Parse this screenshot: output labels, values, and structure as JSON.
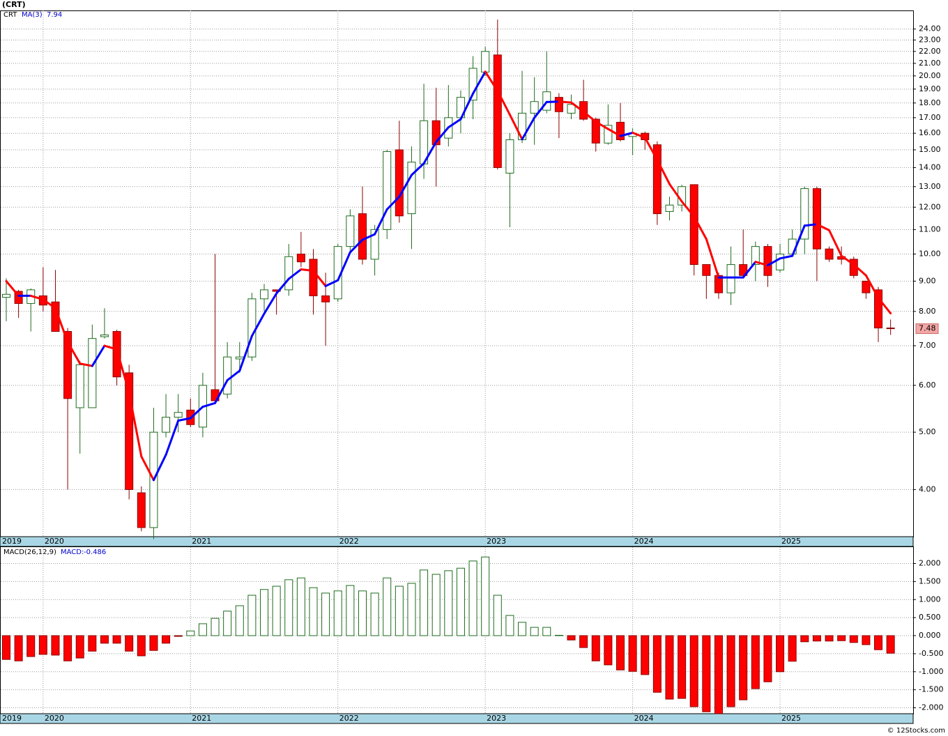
{
  "chart_data": [
    {
      "type": "candlestick",
      "title": "(CRT)",
      "categories": [
        "2019",
        null,
        null,
        "2020",
        null,
        null,
        null,
        null,
        null,
        null,
        null,
        null,
        null,
        null,
        null,
        "2021",
        null,
        null,
        null,
        null,
        null,
        null,
        null,
        null,
        null,
        null,
        null,
        "2022",
        null,
        null,
        null,
        null,
        null,
        null,
        null,
        null,
        null,
        null,
        null,
        "2023",
        null,
        null,
        null,
        null,
        null,
        null,
        null,
        null,
        null,
        null,
        null,
        "2024",
        null,
        null,
        null,
        null,
        null,
        null,
        null,
        null,
        null,
        null,
        null,
        "2025",
        null,
        null,
        null,
        null,
        null,
        null,
        null,
        null,
        null
      ],
      "series": [
        {
          "name": "CRT",
          "up_color": "#1e6b1e",
          "down_color": "#ff0000",
          "open": [
            8.45,
            8.65,
            8.25,
            8.5,
            8.3,
            7.4,
            5.5,
            5.5,
            7.25,
            7.4,
            6.3,
            3.95,
            3.45,
            5.0,
            5.3,
            5.45,
            5.1,
            5.9,
            5.8,
            6.65,
            6.7,
            8.4,
            8.7,
            8.7,
            10.0,
            9.8,
            8.5,
            8.4,
            10.3,
            11.7,
            9.8,
            11.0,
            15.0,
            11.7,
            14.2,
            16.8,
            15.7,
            17.0,
            18.2,
            20.3,
            21.7,
            13.7,
            15.6,
            17.3,
            17.5,
            18.4,
            17.3,
            18.1,
            16.9,
            15.4,
            16.7,
            15.8,
            16.0,
            15.3,
            11.8,
            12.1,
            13.1,
            9.6,
            9.2,
            8.6,
            9.6,
            9.6,
            10.3,
            9.4,
            10.0,
            10.6,
            12.9,
            10.2,
            9.9,
            9.8,
            9.0,
            8.7,
            7.5
          ],
          "high": [
            9.1,
            8.7,
            8.75,
            9.5,
            9.4,
            7.5,
            6.6,
            7.6,
            8.1,
            7.45,
            6.5,
            4.05,
            5.5,
            5.8,
            5.8,
            5.7,
            6.3,
            10.0,
            7.1,
            7.1,
            8.6,
            8.9,
            8.7,
            10.4,
            10.9,
            10.2,
            9.3,
            10.4,
            11.9,
            13.0,
            11.2,
            15.0,
            16.8,
            15.2,
            19.4,
            19.1,
            19.3,
            18.9,
            21.6,
            22.4,
            24.9,
            16.0,
            20.4,
            19.9,
            22.0,
            18.7,
            18.6,
            19.7,
            17.0,
            17.9,
            18.0,
            16.3,
            16.1,
            15.5,
            12.5,
            13.1,
            13.1,
            9.6,
            9.3,
            10.3,
            11.0,
            10.5,
            10.4,
            10.4,
            11.0,
            13.0,
            13.0,
            10.3,
            10.3,
            9.9,
            9.0,
            8.8,
            7.75
          ],
          "low": [
            7.7,
            7.8,
            7.4,
            8.0,
            7.4,
            4.0,
            4.6,
            5.5,
            7.2,
            6.0,
            3.85,
            3.4,
            3.3,
            4.9,
            5.0,
            5.1,
            4.9,
            5.6,
            5.7,
            6.3,
            6.6,
            8.0,
            7.9,
            8.5,
            9.5,
            7.9,
            7.0,
            8.3,
            10.0,
            9.6,
            9.2,
            10.6,
            11.3,
            10.2,
            13.4,
            13.0,
            15.2,
            16.0,
            16.9,
            20.0,
            13.9,
            11.1,
            15.4,
            15.3,
            17.3,
            15.7,
            16.9,
            16.8,
            14.9,
            15.3,
            15.5,
            14.7,
            15.0,
            11.2,
            11.4,
            11.8,
            9.2,
            8.4,
            8.4,
            8.2,
            9.1,
            9.0,
            8.8,
            9.3,
            9.9,
            10.0,
            9.0,
            9.7,
            9.6,
            9.1,
            8.4,
            7.1,
            7.3
          ],
          "close": [
            8.55,
            8.25,
            8.7,
            8.2,
            7.4,
            5.7,
            6.5,
            7.2,
            7.3,
            6.2,
            4.0,
            3.45,
            5.0,
            5.3,
            5.4,
            5.15,
            6.0,
            5.65,
            6.7,
            6.7,
            8.4,
            8.7,
            8.65,
            9.9,
            9.7,
            8.5,
            8.3,
            10.3,
            11.6,
            9.8,
            11.0,
            14.9,
            11.6,
            14.3,
            16.8,
            15.3,
            17.0,
            18.4,
            20.6,
            22.0,
            14.0,
            15.6,
            17.3,
            18.1,
            18.8,
            17.4,
            17.9,
            16.9,
            15.4,
            16.5,
            15.6,
            16.0,
            15.6,
            11.7,
            12.1,
            13.0,
            9.6,
            9.2,
            8.6,
            9.6,
            9.2,
            10.3,
            9.2,
            10.0,
            10.6,
            12.9,
            10.2,
            9.8,
            9.8,
            9.2,
            8.6,
            7.5,
            7.48
          ]
        },
        {
          "name": "MA(3)",
          "type": "line",
          "up_color": "#0000ff",
          "down_color": "#ff0000",
          "values": [
            9.0,
            8.5,
            8.5,
            8.38,
            8.1,
            7.1,
            6.53,
            6.47,
            7.0,
            6.9,
            5.83,
            4.55,
            4.15,
            4.58,
            5.23,
            5.28,
            5.52,
            5.6,
            6.12,
            6.35,
            7.27,
            7.93,
            8.58,
            9.08,
            9.42,
            9.37,
            8.83,
            9.03,
            10.07,
            10.57,
            10.8,
            11.9,
            12.5,
            13.6,
            14.23,
            15.47,
            16.37,
            16.9,
            18.67,
            20.33,
            18.87,
            17.2,
            15.63,
            17.0,
            18.07,
            18.1,
            18.03,
            17.4,
            16.73,
            16.27,
            15.83,
            16.03,
            15.73,
            14.43,
            13.13,
            12.27,
            11.57,
            10.6,
            9.13,
            9.13,
            9.13,
            9.7,
            9.57,
            9.83,
            9.93,
            11.17,
            11.23,
            10.97,
            9.93,
            9.6,
            9.2,
            8.43,
            7.94
          ]
        }
      ],
      "log_scale": true,
      "ylim": [
        3.33,
        25.8
      ],
      "grid": true,
      "yticks": [
        {
          "value": 4,
          "label": "4.00"
        },
        {
          "value": 5,
          "label": "5.00"
        },
        {
          "value": 6,
          "label": "6.00"
        },
        {
          "value": 7,
          "label": "7.00"
        },
        {
          "value": 8,
          "label": "8.00"
        },
        {
          "value": 9,
          "label": "9.00"
        },
        {
          "value": 10,
          "label": "10.00"
        },
        {
          "value": 11,
          "label": "11.00"
        },
        {
          "value": 12,
          "label": "12.00"
        },
        {
          "value": 13,
          "label": "13.00"
        },
        {
          "value": 14,
          "label": "14.00"
        },
        {
          "value": 15,
          "label": "15.00"
        },
        {
          "value": 16,
          "label": "16.00"
        },
        {
          "value": 17,
          "label": "17.00"
        },
        {
          "value": 18,
          "label": "18.00"
        },
        {
          "value": 19,
          "label": "19.00"
        },
        {
          "value": 20,
          "label": "20.00"
        },
        {
          "value": 21,
          "label": "21.00"
        },
        {
          "value": 22,
          "label": "22.00"
        },
        {
          "value": 23,
          "label": "23.00"
        },
        {
          "value": 24,
          "label": "24.00"
        }
      ]
    },
    {
      "type": "bar",
      "title": "MACD(26,12,9)",
      "categories": [
        "2019",
        null,
        null,
        "2020",
        null,
        null,
        null,
        null,
        null,
        null,
        null,
        null,
        null,
        null,
        null,
        "2021",
        null,
        null,
        null,
        null,
        null,
        null,
        null,
        null,
        null,
        null,
        null,
        "2022",
        null,
        null,
        null,
        null,
        null,
        null,
        null,
        null,
        null,
        null,
        null,
        "2023",
        null,
        null,
        null,
        null,
        null,
        null,
        null,
        null,
        null,
        null,
        null,
        "2024",
        null,
        null,
        null,
        null,
        null,
        null,
        null,
        null,
        null,
        null,
        null,
        "2025",
        null,
        null,
        null,
        null,
        null,
        null,
        null,
        null,
        null
      ],
      "series": [
        {
          "name": "MACD:",
          "up_color": "#1e6b1e",
          "down_color": "#ff0000",
          "values": [
            -0.66,
            -0.7,
            -0.58,
            -0.52,
            -0.54,
            -0.7,
            -0.62,
            -0.43,
            -0.21,
            -0.21,
            -0.43,
            -0.56,
            -0.41,
            -0.21,
            -0.02,
            0.13,
            0.33,
            0.48,
            0.68,
            0.83,
            1.12,
            1.28,
            1.37,
            1.55,
            1.6,
            1.33,
            1.18,
            1.24,
            1.39,
            1.24,
            1.18,
            1.6,
            1.37,
            1.45,
            1.82,
            1.7,
            1.8,
            1.87,
            2.07,
            2.18,
            1.12,
            0.56,
            0.37,
            0.23,
            0.23,
            0.01,
            -0.12,
            -0.33,
            -0.7,
            -0.81,
            -0.95,
            -0.99,
            -1.08,
            -1.57,
            -1.76,
            -1.74,
            -1.97,
            -2.11,
            -2.16,
            -1.97,
            -1.78,
            -1.47,
            -1.28,
            -1.0,
            -0.71,
            -0.17,
            -0.15,
            -0.15,
            -0.14,
            -0.19,
            -0.25,
            -0.39,
            -0.486
          ]
        }
      ],
      "ylim": [
        -2.164,
        2.454
      ],
      "grid": true,
      "yticks": [
        {
          "value": -2,
          "label": "-2.000"
        },
        {
          "value": -1.5,
          "label": "-1.500"
        },
        {
          "value": -1,
          "label": "-1.000"
        },
        {
          "value": -0.5,
          "label": "-0.500"
        },
        {
          "value": 0,
          "label": "0.000"
        },
        {
          "value": 0.5,
          "label": "0.500"
        },
        {
          "value": 1,
          "label": "1.000"
        },
        {
          "value": 1.5,
          "label": "1.500"
        },
        {
          "value": 2,
          "label": "2.000"
        }
      ]
    }
  ],
  "credit": "© 12Stocks.com"
}
